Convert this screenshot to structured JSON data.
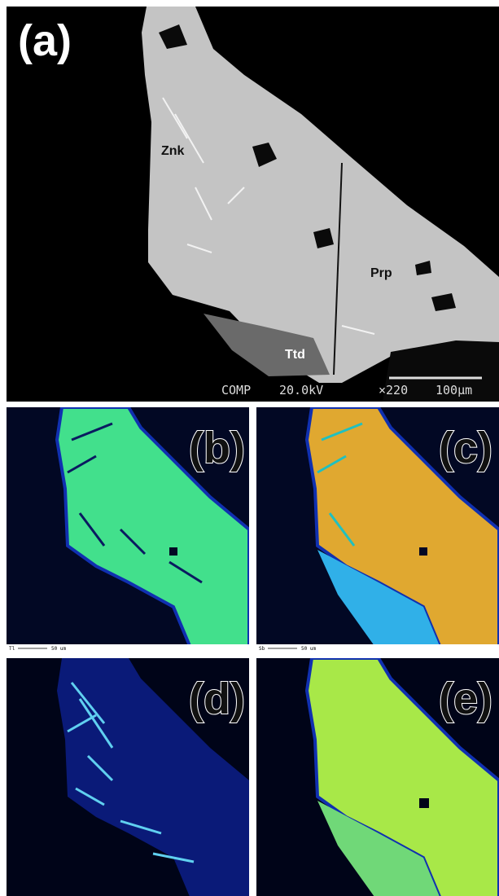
{
  "panels": [
    {
      "label": "(a)",
      "annotations": [
        "Znk",
        "Prp",
        "Ttd"
      ],
      "footer": {
        "mode": "COMP",
        "voltage": "20.0kV",
        "magnification": "×220",
        "scale": "100μm"
      }
    },
    {
      "label": "(b)",
      "element": "Tl",
      "scale": "50 um"
    },
    {
      "label": "(c)",
      "element": "Sb",
      "scale": "50 um"
    },
    {
      "label": "(d)"
    },
    {
      "label": "(e)"
    }
  ]
}
